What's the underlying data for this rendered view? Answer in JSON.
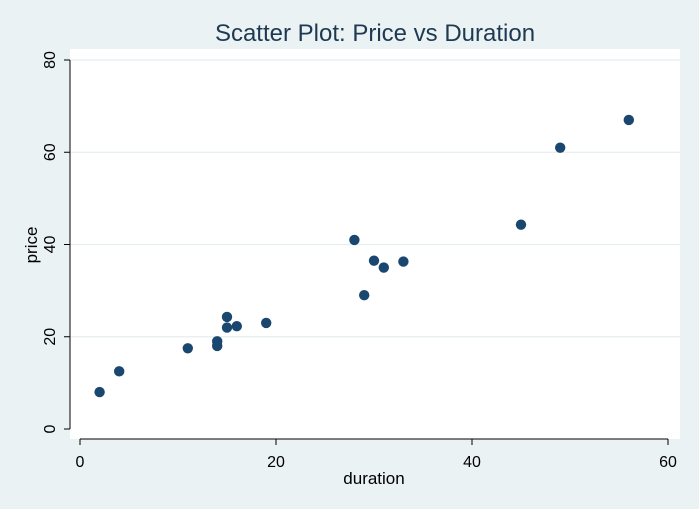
{
  "colors": {
    "background": "#eaf2f3",
    "plot_background": "#ffffff",
    "marker": "#1a476f",
    "title": "#1e3a52",
    "grid": "#e6eef0"
  },
  "chart_data": {
    "type": "scatter",
    "title": "Scatter Plot: Price vs Duration",
    "xlabel": "duration",
    "ylabel": "price",
    "xlim": [
      0,
      60
    ],
    "ylim": [
      0,
      80
    ],
    "xticks": [
      0,
      20,
      40,
      60
    ],
    "yticks": [
      0,
      20,
      40,
      60,
      80
    ],
    "grid": true,
    "legend": "none",
    "points": [
      {
        "x": 2,
        "y": 8
      },
      {
        "x": 4,
        "y": 12.5
      },
      {
        "x": 11,
        "y": 17.5
      },
      {
        "x": 14,
        "y": 18
      },
      {
        "x": 14,
        "y": 19
      },
      {
        "x": 15,
        "y": 24.3
      },
      {
        "x": 15,
        "y": 22
      },
      {
        "x": 16,
        "y": 22.3
      },
      {
        "x": 19,
        "y": 23
      },
      {
        "x": 28,
        "y": 41
      },
      {
        "x": 29,
        "y": 29
      },
      {
        "x": 30,
        "y": 36.5
      },
      {
        "x": 31,
        "y": 35
      },
      {
        "x": 33,
        "y": 36.3
      },
      {
        "x": 45,
        "y": 44.3
      },
      {
        "x": 49,
        "y": 61
      },
      {
        "x": 56,
        "y": 67
      }
    ]
  }
}
